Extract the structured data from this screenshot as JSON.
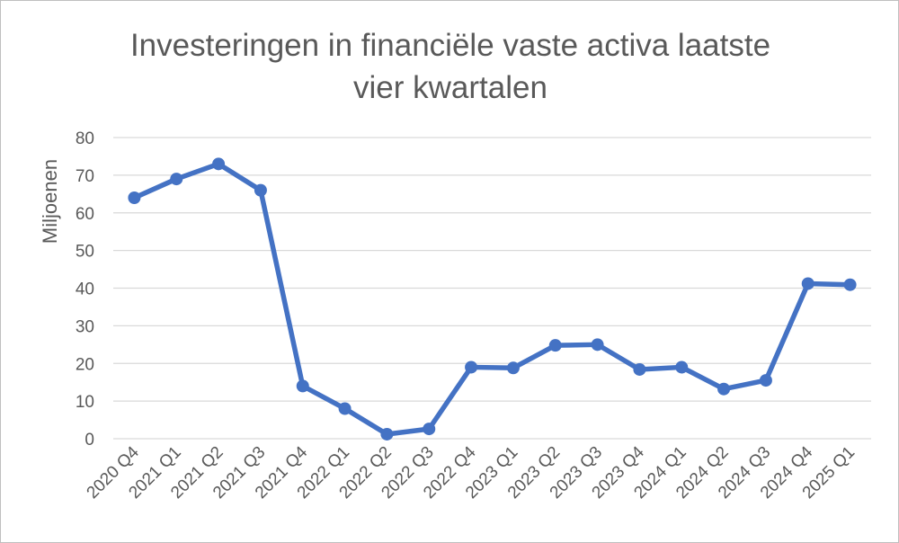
{
  "chart_data": {
    "type": "line",
    "title": "Investeringen in financiële vaste activa laatste\nvier kwartalen",
    "xlabel": "",
    "ylabel": "Miljoenen",
    "ylim": [
      0,
      80
    ],
    "yticks": [
      0,
      10,
      20,
      30,
      40,
      50,
      60,
      70,
      80
    ],
    "grid": true,
    "legend": "none",
    "color": "#4472c4",
    "categories": [
      "2020 Q4",
      "2021 Q1",
      "2021 Q2",
      "2021 Q3",
      "2021 Q4",
      "2022 Q1",
      "2022 Q2",
      "2022 Q3",
      "2022 Q4",
      "2023 Q1",
      "2023 Q2",
      "2023 Q3",
      "2023 Q4",
      "2024 Q1",
      "2024 Q2",
      "2024 Q3",
      "2024 Q4",
      "2025 Q1"
    ],
    "series": [
      {
        "values": [
          64,
          69,
          73,
          66,
          14,
          8,
          1.2,
          2.6,
          19,
          18.8,
          24.8,
          25,
          18.4,
          19,
          13.2,
          15.5,
          41.2,
          40.9
        ]
      }
    ]
  }
}
